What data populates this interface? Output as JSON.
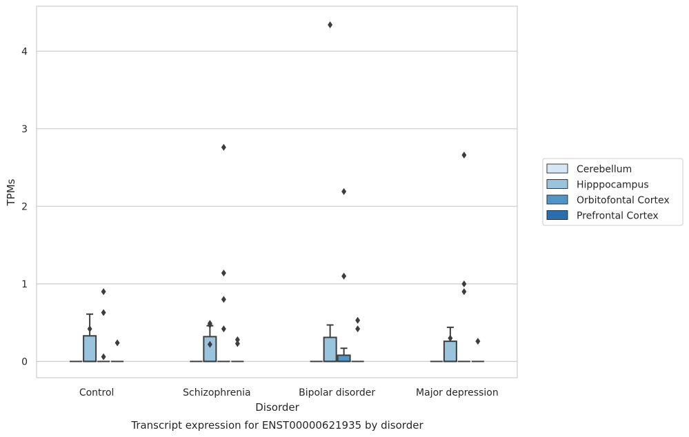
{
  "chart_data": {
    "type": "box",
    "title": "",
    "caption": "Transcript expression for ENST00000621935 by disorder",
    "xlabel": "Disorder",
    "ylabel": "TPMs",
    "categories": [
      "Control",
      "Schizophrenia",
      "Bipolar disorder",
      "Major depression"
    ],
    "ylim": [
      -0.21,
      4.58
    ],
    "yticks": [
      0,
      1,
      2,
      3,
      4
    ],
    "grid": true,
    "legend_position": "right",
    "series": [
      {
        "name": "Cerebellum",
        "color": "#d6e6f4",
        "boxes": [
          {
            "q1": 0,
            "median": 0,
            "q3": 0,
            "whisker_low": 0,
            "whisker_high": 0,
            "outliers": []
          },
          {
            "q1": 0,
            "median": 0,
            "q3": 0,
            "whisker_low": 0,
            "whisker_high": 0,
            "outliers": []
          },
          {
            "q1": 0,
            "median": 0,
            "q3": 0,
            "whisker_low": 0,
            "whisker_high": 0,
            "outliers": []
          },
          {
            "q1": 0,
            "median": 0,
            "q3": 0,
            "whisker_low": 0,
            "whisker_high": 0,
            "outliers": []
          }
        ]
      },
      {
        "name": "Hipppocampus",
        "color": "#9ac4dd",
        "boxes": [
          {
            "q1": 0,
            "median": 0,
            "q3": 0.33,
            "whisker_low": 0,
            "whisker_high": 0.61,
            "outliers": [
              0.42
            ]
          },
          {
            "q1": 0,
            "median": 0,
            "q3": 0.32,
            "whisker_low": 0,
            "whisker_high": 0.46,
            "outliers": [
              0.47,
              0.49,
              0.22
            ]
          },
          {
            "q1": 0,
            "median": 0,
            "q3": 0.31,
            "whisker_low": 0,
            "whisker_high": 0.47,
            "outliers": [
              4.34
            ]
          },
          {
            "q1": 0,
            "median": 0,
            "q3": 0.26,
            "whisker_low": 0,
            "whisker_high": 0.44,
            "outliers": [
              0.3
            ]
          }
        ]
      },
      {
        "name": "Orbitofontal Cortex",
        "color": "#5195c6",
        "boxes": [
          {
            "q1": 0,
            "median": 0,
            "q3": 0,
            "whisker_low": 0,
            "whisker_high": 0,
            "outliers": [
              0.9,
              0.63,
              0.06
            ]
          },
          {
            "q1": 0,
            "median": 0,
            "q3": 0,
            "whisker_low": 0,
            "whisker_high": 0,
            "outliers": [
              2.76,
              1.14,
              0.8,
              0.42
            ]
          },
          {
            "q1": 0,
            "median": 0,
            "q3": 0.08,
            "whisker_low": 0,
            "whisker_high": 0.17,
            "outliers": [
              2.19,
              1.1
            ]
          },
          {
            "q1": 0,
            "median": 0,
            "q3": 0,
            "whisker_low": 0,
            "whisker_high": 0,
            "outliers": [
              2.66,
              1.0,
              0.9
            ]
          }
        ]
      },
      {
        "name": "Prefrontal Cortex",
        "color": "#2a6ead",
        "boxes": [
          {
            "q1": 0,
            "median": 0,
            "q3": 0,
            "whisker_low": 0,
            "whisker_high": 0,
            "outliers": [
              0.24
            ]
          },
          {
            "q1": 0,
            "median": 0,
            "q3": 0,
            "whisker_low": 0,
            "whisker_high": 0,
            "outliers": [
              0.28,
              0.23
            ]
          },
          {
            "q1": 0,
            "median": 0,
            "q3": 0,
            "whisker_low": 0,
            "whisker_high": 0,
            "outliers": [
              0.53,
              0.42
            ]
          },
          {
            "q1": 0,
            "median": 0,
            "q3": 0,
            "whisker_low": 0,
            "whisker_high": 0,
            "outliers": [
              0.26
            ]
          }
        ]
      }
    ]
  }
}
